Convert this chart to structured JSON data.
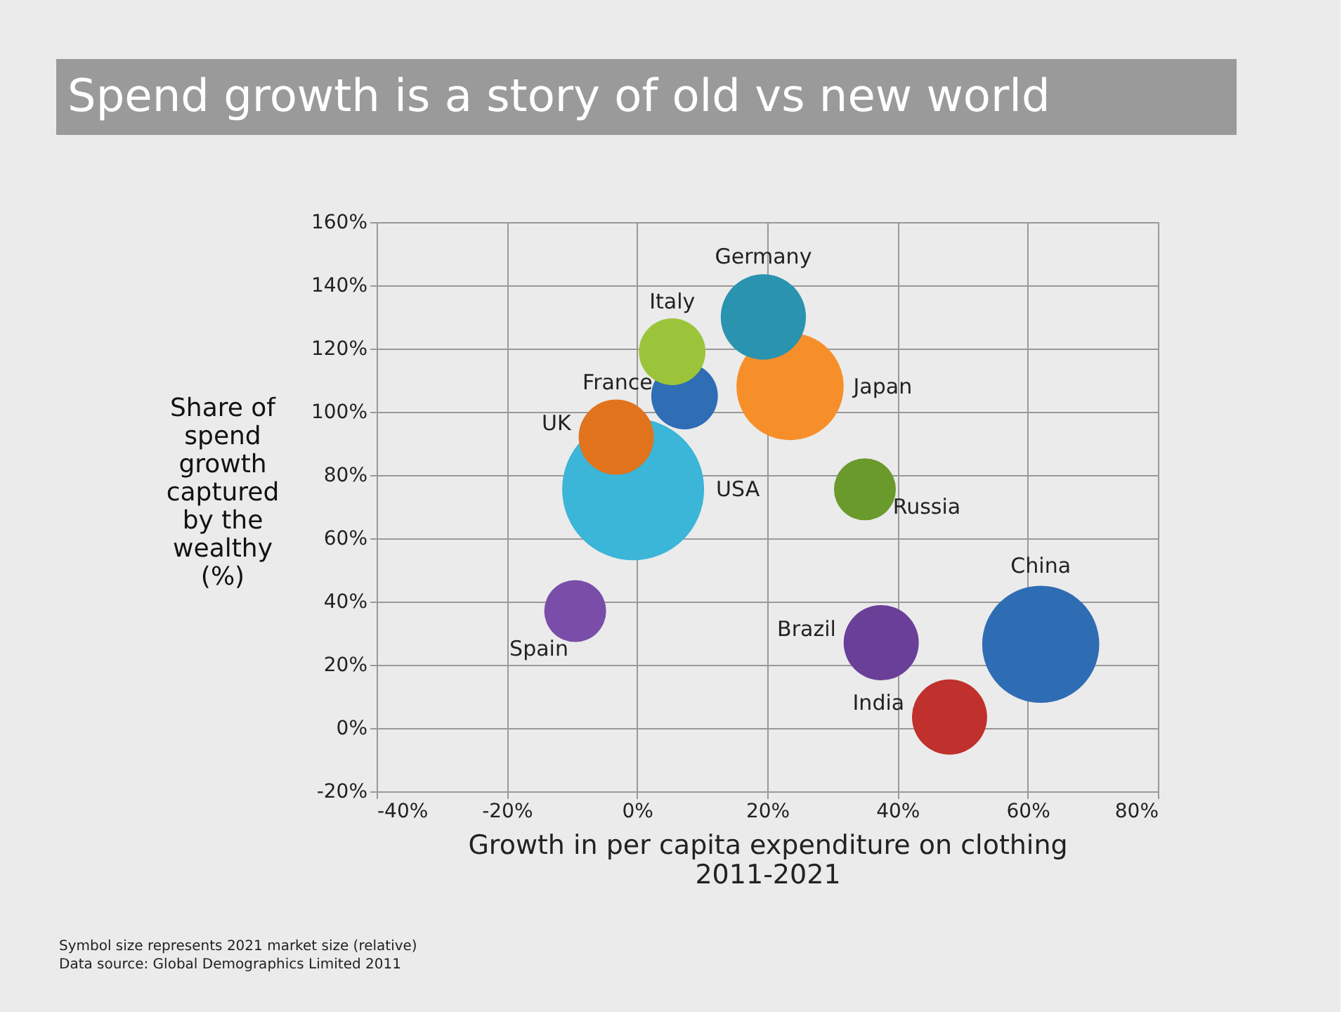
{
  "chart_data": {
    "type": "bubble",
    "title": "Spend growth is a story of old  vs  new world",
    "xlabel": "Growth in per capita expenditure on clothing 2011-2021",
    "ylabel": "Share of spend growth captured by the wealthy (%)",
    "series": [
      {
        "name": "USA",
        "color": "#3bb5d8",
        "x": [
          -0.6
        ],
        "values": [
          75.5
        ],
        "sizes": [
          1
        ]
      },
      {
        "name": "France",
        "color": "#2f6db5",
        "x": [
          7.3
        ],
        "values": [
          105
        ],
        "sizes": [
          0.22
        ]
      },
      {
        "name": "UK",
        "color": "#e0731c",
        "x": [
          -3.2
        ],
        "values": [
          92
        ],
        "sizes": [
          0.28
        ]
      },
      {
        "name": "Italy",
        "color": "#9cc43a",
        "x": [
          5.4
        ],
        "values": [
          119
        ],
        "sizes": [
          0.22
        ]
      },
      {
        "name": "Japan",
        "color": "#f68f2a",
        "x": [
          23.5
        ],
        "values": [
          108
        ],
        "sizes": [
          0.57
        ]
      },
      {
        "name": "Germany",
        "color": "#2a93b0",
        "x": [
          19.4
        ],
        "values": [
          130
        ],
        "sizes": [
          0.36
        ]
      },
      {
        "name": "Russia",
        "color": "#6b9a2c",
        "x": [
          35
        ],
        "values": [
          75.5
        ],
        "sizes": [
          0.19
        ]
      },
      {
        "name": "Spain",
        "color": "#7a4ea8",
        "x": [
          -9.5
        ],
        "values": [
          37
        ],
        "sizes": [
          0.19
        ]
      },
      {
        "name": "China",
        "color": "#2e6db4",
        "x": [
          62
        ],
        "values": [
          26.5
        ],
        "sizes": [
          0.68
        ]
      },
      {
        "name": "Brazil",
        "color": "#6a3f98",
        "x": [
          37.5
        ],
        "values": [
          27
        ],
        "sizes": [
          0.28
        ]
      },
      {
        "name": "India",
        "color": "#c0302c",
        "x": [
          48
        ],
        "values": [
          3.5
        ],
        "sizes": [
          0.28
        ]
      }
    ],
    "xlim": [
      -40,
      80
    ],
    "xticks": [
      {
        "value": -40,
        "label": "-40%"
      },
      {
        "value": -20,
        "label": "-20%"
      },
      {
        "value": 0,
        "label": "0%"
      },
      {
        "value": 20,
        "label": "20%"
      },
      {
        "value": 40,
        "label": "40%"
      },
      {
        "value": 60,
        "label": "60%"
      },
      {
        "value": 80,
        "label": "80%"
      }
    ],
    "ylim": [
      -20,
      160
    ],
    "yticks": [
      {
        "value": -20,
        "label": "-20%"
      },
      {
        "value": 0,
        "label": "0%"
      },
      {
        "value": 20,
        "label": "20%"
      },
      {
        "value": 40,
        "label": "40%"
      },
      {
        "value": 60,
        "label": "60%"
      },
      {
        "value": 80,
        "label": "80%"
      },
      {
        "value": 100,
        "label": "100%"
      },
      {
        "value": 120,
        "label": "120%"
      },
      {
        "value": 140,
        "label": "140%"
      },
      {
        "value": 160,
        "label": "160%"
      }
    ],
    "grid": true,
    "annotations": [
      "Symbol size represents 2021 market size (relative)",
      "Data source: Global Demographics Limited 2011"
    ]
  }
}
